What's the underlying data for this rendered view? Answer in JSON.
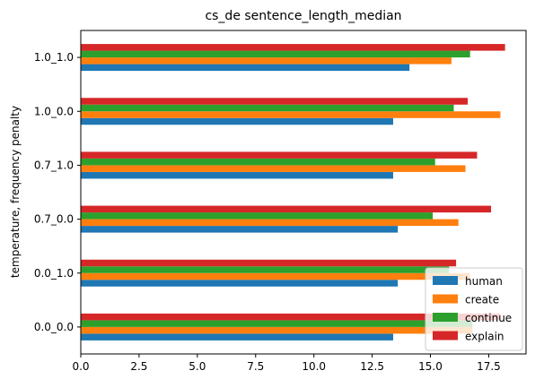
{
  "chart_data": {
    "type": "bar",
    "orientation": "horizontal",
    "title": "cs_de sentence_length_median",
    "xlabel": "",
    "ylabel": "temperature, frequency penalty",
    "categories": [
      "0.0_0.0",
      "0.0_1.0",
      "0.7_0.0",
      "0.7_1.0",
      "1.0_0.0",
      "1.0_1.0"
    ],
    "series": [
      {
        "name": "human",
        "color": "#1f77b4",
        "values": [
          13.4,
          13.6,
          13.6,
          13.4,
          13.4,
          14.1
        ]
      },
      {
        "name": "create",
        "color": "#ff7f0e",
        "values": [
          16.8,
          16.7,
          16.2,
          16.5,
          18.0,
          15.9
        ]
      },
      {
        "name": "continue",
        "color": "#2ca02c",
        "values": [
          16.8,
          15.8,
          15.1,
          15.2,
          16.0,
          16.7
        ]
      },
      {
        "name": "explain",
        "color": "#d62728",
        "values": [
          18.0,
          16.1,
          17.6,
          17.0,
          16.6,
          18.2
        ]
      }
    ],
    "xlim": [
      0,
      19.1
    ],
    "xticks": [
      "0.0",
      "2.5",
      "5.0",
      "7.5",
      "10.0",
      "12.5",
      "15.0",
      "17.5"
    ],
    "grid": false,
    "legend_position": "lower-right"
  }
}
